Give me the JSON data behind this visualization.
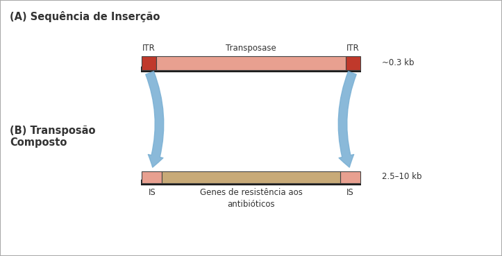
{
  "title_a": "(A) Sequência de Inserção",
  "title_b": "(B) Transposão\nComposto",
  "label_itr_left": "ITR",
  "label_itr_right": "ITR",
  "label_transposase": "Transposase",
  "label_is_left": "IS",
  "label_is_right": "IS",
  "label_genes": "Genes de resistência aos\nantibióticos",
  "label_size_a": "~0.3 kb",
  "label_size_b": "2.5–10 kb",
  "bg_color": "#ffffff",
  "border_color": "#aaaaaa",
  "dna_line_color": "#1a1a1a",
  "itr_color_a": "#c0392b",
  "transposase_color": "#e8a090",
  "is_color_b": "#e8a090",
  "genes_color": "#c8aa78",
  "arrow_color": "#7ab0d4",
  "text_color": "#333333",
  "title_fontsize": 10.5,
  "small_fontsize": 8.5
}
